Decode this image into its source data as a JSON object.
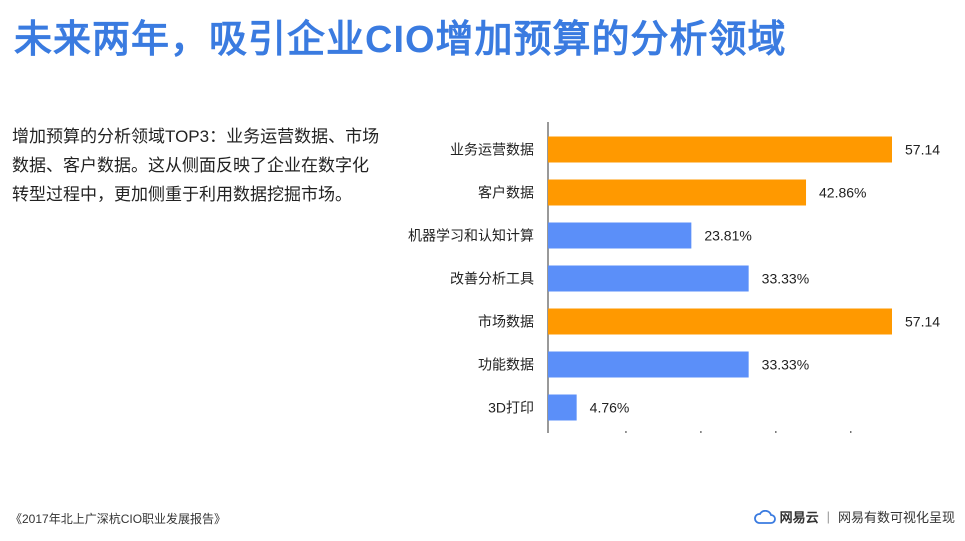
{
  "title": "未来两年，吸引企业CIO增加预算的分析领域",
  "description": "增加预算的分析领域TOP3：业务运营数据、市场数据、客户数据。这从侧面反映了企业在数字化转型过程中，更加侧重于利用数据挖掘市场。",
  "footer": {
    "source": "《2017年北上广深杭CIO职业发展报告》",
    "brand": "网易云",
    "separator": "|",
    "tagline": "网易有数可视化呈现",
    "brand_icon": "cloud-icon"
  },
  "colors": {
    "title": "#3a7be0",
    "highlight": "#ff9900",
    "normal": "#5b8ff9"
  },
  "chart_data": {
    "type": "bar",
    "orientation": "horizontal",
    "categories": [
      "业务运营数据",
      "客户数据",
      "机器学习和认知计算",
      "改善分析工具",
      "市场数据",
      "功能数据",
      "3D打印"
    ],
    "values": [
      57.14,
      42.86,
      23.81,
      33.33,
      57.14,
      33.33,
      4.76
    ],
    "data_labels": [
      "57.14%",
      "42.86%",
      "23.81%",
      "33.33%",
      "57.14%",
      "33.33%",
      "4.76%"
    ],
    "highlighted": [
      true,
      true,
      false,
      false,
      true,
      false,
      false
    ],
    "xlim": [
      0,
      60
    ],
    "grid": false
  }
}
